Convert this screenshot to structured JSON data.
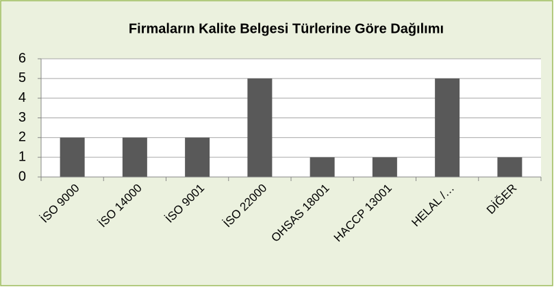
{
  "chart_data": {
    "type": "bar",
    "title": "Firmaların Kalite Belgesi Türlerine Göre Dağılımı",
    "categories": [
      "İSO 9000",
      "İSO 14000",
      "İSO 9001",
      "İSO 22000",
      "OHSAS 18001",
      "HACCP 13001",
      "HELAL /…",
      "DİĞER"
    ],
    "values": [
      2,
      2,
      2,
      5,
      1,
      1,
      5,
      1
    ],
    "color": "#595959",
    "ylim": [
      0,
      6
    ],
    "yticks": [
      0,
      1,
      2,
      3,
      4,
      5,
      6
    ],
    "grid": true
  }
}
